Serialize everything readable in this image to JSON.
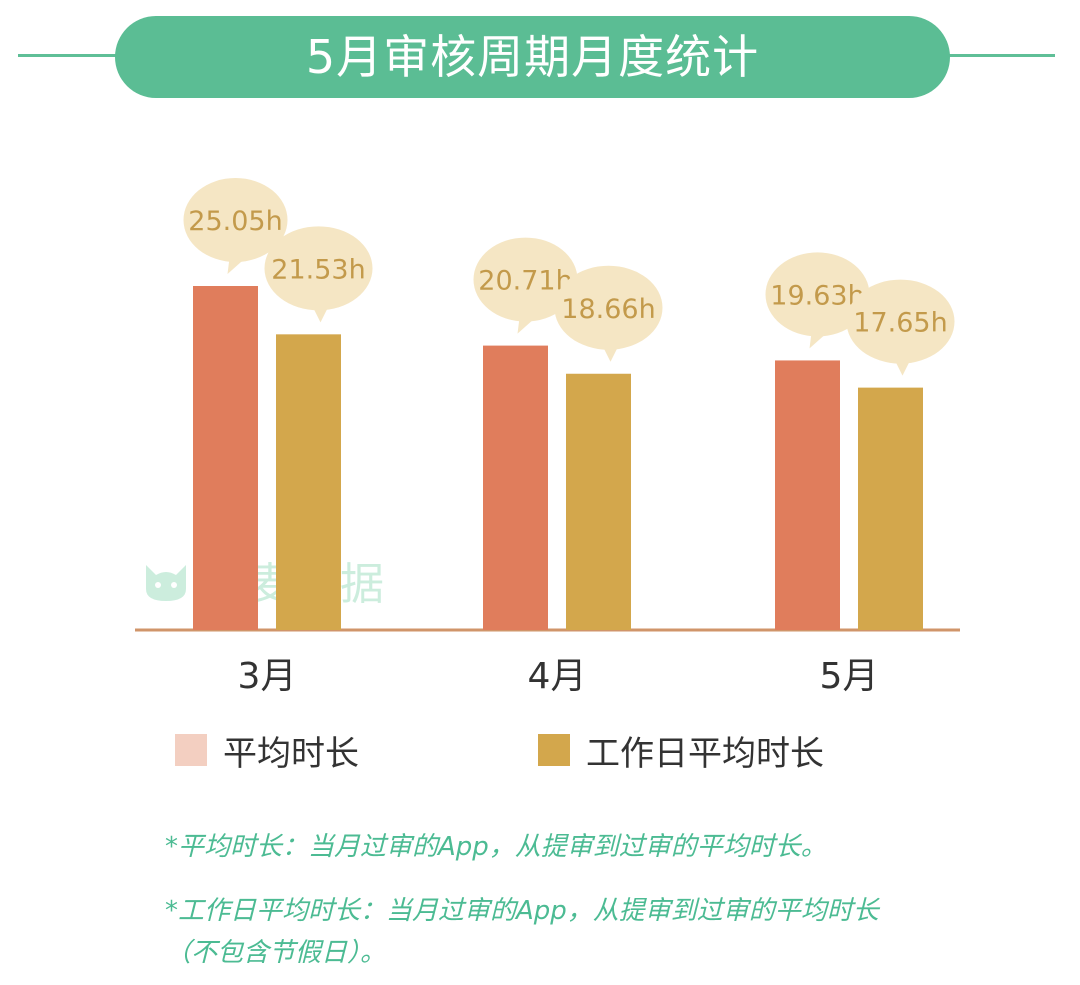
{
  "title": "5月审核周期月度统计",
  "watermark": {
    "text": "七麦数据",
    "icon": "cat-logo-icon"
  },
  "colors": {
    "series1": "#e07d5c",
    "series2": "#d3a74c",
    "bubble": "#f5e6c4",
    "bubble_text": "#c39a4b",
    "axis": "#d0956a",
    "accent": "#5bbd94"
  },
  "chart_data": {
    "type": "bar",
    "categories": [
      "3月",
      "4月",
      "5月"
    ],
    "series": [
      {
        "name": "平均时长",
        "values": [
          25.05,
          20.71,
          19.63
        ],
        "labels": [
          "25.05h",
          "20.71h",
          "19.63h"
        ]
      },
      {
        "name": "工作日平均时长",
        "values": [
          21.53,
          18.66,
          17.65
        ],
        "labels": [
          "21.53h",
          "18.66h",
          "17.65h"
        ]
      }
    ],
    "ylim": [
      0,
      25.05
    ],
    "grid": false,
    "legend": "bottom-left"
  },
  "legend": {
    "series1_label": "平均时长",
    "series1_swatch": "#f3cfc1",
    "series2_label": "工作日平均时长",
    "series2_swatch": "#d3a74c"
  },
  "notes": {
    "line1": "*平均时长：当月过审的App，从提审到过审的平均时长。",
    "line2": "*工作日平均时长：当月过审的App，从提审到过审的平均时长",
    "line3": "（不包含节假日）。"
  }
}
